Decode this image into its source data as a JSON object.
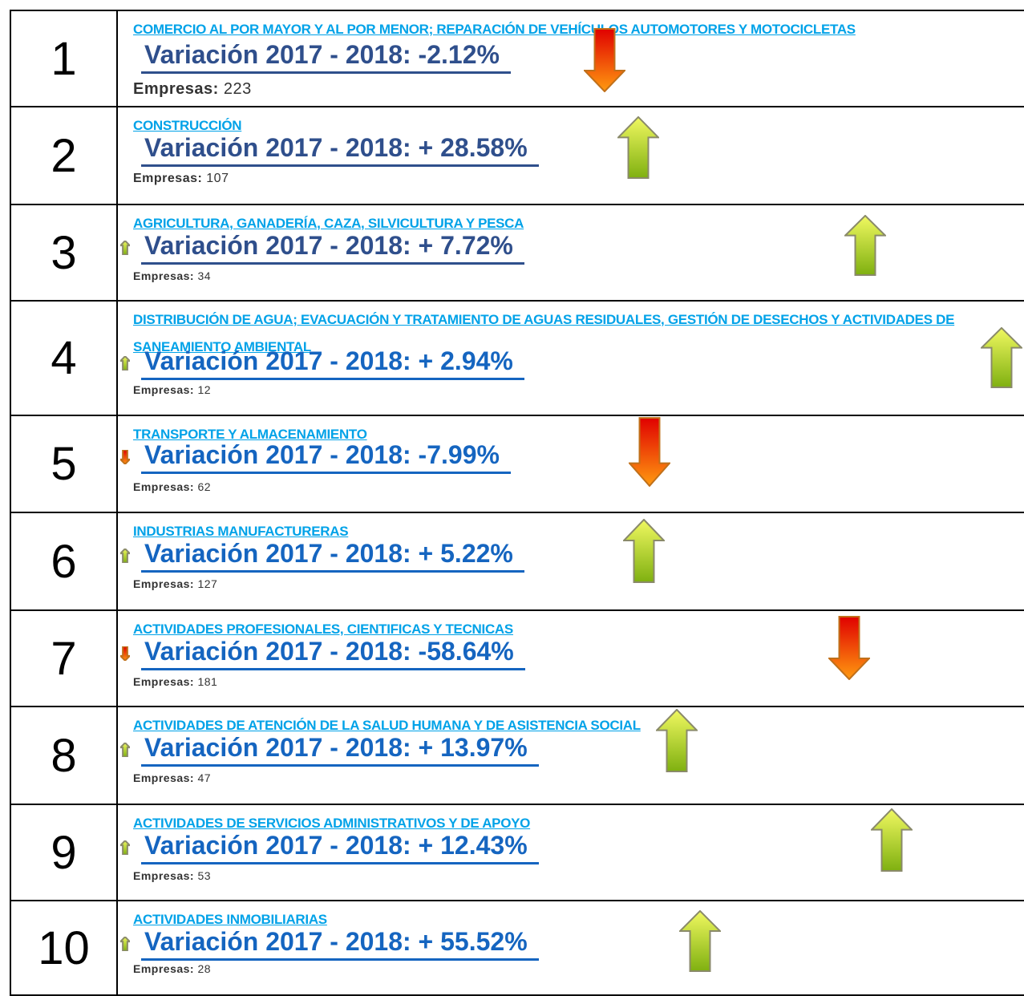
{
  "rows": [
    {
      "rank": 1,
      "sector": "COMERCIO AL POR MAYOR Y AL POR MENOR; REPARACIÓN DE VEHÍCULOS AUTOMOTORES Y MOTOCICLETAS",
      "variation": "Variación 2017 - 2018: -2.12%",
      "variation_color": "#2f4f8c",
      "companies_label": "Empresas:",
      "companies": 223,
      "arrow": "down"
    },
    {
      "rank": 2,
      "sector": "CONSTRUCCIÓN",
      "variation": "Variación 2017 - 2018: + 28.58%",
      "variation_color": "#2f4f8c",
      "companies_label": "Empresas:",
      "companies": 107,
      "arrow": "up"
    },
    {
      "rank": 3,
      "sector": "AGRICULTURA, GANADERÍA, CAZA, SILVICULTURA Y PESCA",
      "variation": "Variación 2017 - 2018: + 7.72%",
      "variation_color": "#2f4f8c",
      "companies_label": "Empresas:",
      "companies": 34,
      "arrow": "up"
    },
    {
      "rank": 4,
      "sector": "DISTRIBUCIÓN DE AGUA; EVACUACIÓN Y TRATAMIENTO DE AGUAS RESIDUALES, GESTIÓN DE DESECHOS Y ACTIVIDADES DE SANEAMIENTO AMBIENTAL",
      "variation": "Variación 2017 - 2018: + 2.94%",
      "variation_color": "#1565c0",
      "companies_label": "Empresas:",
      "companies": 12,
      "arrow": "up"
    },
    {
      "rank": 5,
      "sector": "TRANSPORTE Y ALMACENAMIENTO",
      "variation": "Variación 2017 - 2018: -7.99%",
      "variation_color": "#1565c0",
      "companies_label": "Empresas:",
      "companies": 62,
      "arrow": "down"
    },
    {
      "rank": 6,
      "sector": "INDUSTRIAS MANUFACTURERAS",
      "variation": "Variación 2017 - 2018: + 5.22%",
      "variation_color": "#1565c0",
      "companies_label": "Empresas:",
      "companies": 127,
      "arrow": "up"
    },
    {
      "rank": 7,
      "sector": "ACTIVIDADES PROFESIONALES, CIENTIFICAS Y TECNICAS",
      "variation": "Variación 2017 - 2018: -58.64%",
      "variation_color": "#1565c0",
      "companies_label": "Empresas:",
      "companies": 181,
      "arrow": "down"
    },
    {
      "rank": 8,
      "sector": "ACTIVIDADES DE ATENCIÓN DE LA SALUD HUMANA Y DE ASISTENCIA SOCIAL",
      "variation": "Variación 2017 - 2018: + 13.97%",
      "variation_color": "#1565c0",
      "companies_label": "Empresas:",
      "companies": 47,
      "arrow": "up"
    },
    {
      "rank": 9,
      "sector": "ACTIVIDADES DE SERVICIOS ADMINISTRATIVOS Y DE APOYO",
      "variation": "Variación 2017 - 2018: + 12.43%",
      "variation_color": "#1565c0",
      "companies_label": "Empresas:",
      "companies": 53,
      "arrow": "up"
    },
    {
      "rank": 10,
      "sector": "ACTIVIDADES INMOBILIARIAS",
      "variation": "Variación 2017 - 2018: + 55.52%",
      "variation_color": "#1565c0",
      "companies_label": "Empresas:",
      "companies": 28,
      "arrow": "up"
    }
  ]
}
